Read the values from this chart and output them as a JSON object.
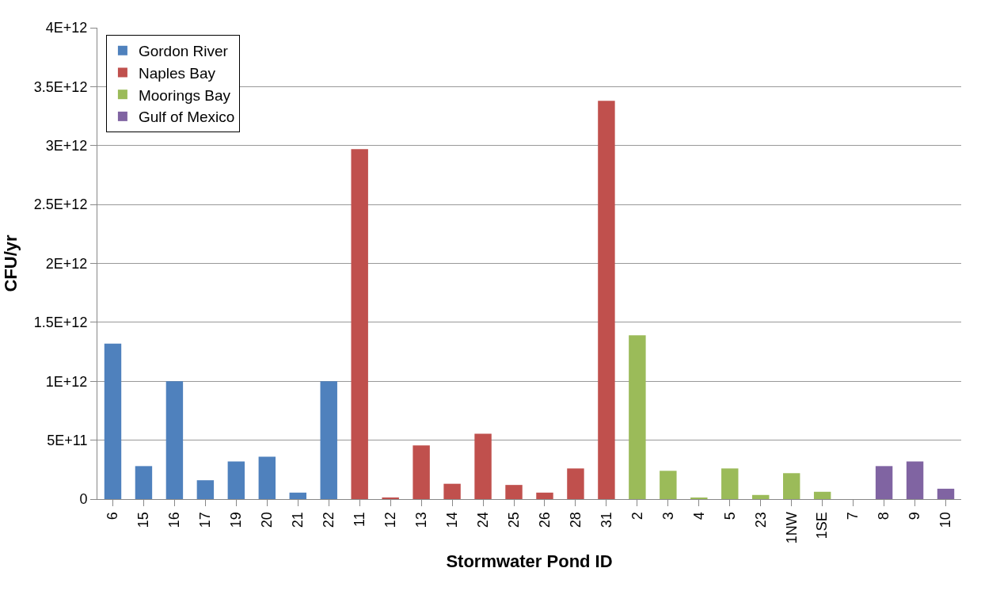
{
  "chart_data": {
    "type": "bar",
    "xlabel": "Stormwater Pond ID",
    "ylabel": "CFU/yr",
    "categories": [
      "6",
      "15",
      "16",
      "17",
      "19",
      "20",
      "21",
      "22",
      "11",
      "12",
      "13",
      "14",
      "24",
      "25",
      "26",
      "28",
      "31",
      "2",
      "3",
      "4",
      "5",
      "23",
      "1NW",
      "1SE",
      "7",
      "8",
      "9",
      "10"
    ],
    "series": [
      {
        "name": "Gordon River",
        "color": "#4f81bd",
        "values": [
          1320000000000.0,
          280000000000.0,
          1000000000000.0,
          160000000000.0,
          320000000000.0,
          360000000000.0,
          55000000000.0,
          1000000000000.0,
          null,
          null,
          null,
          null,
          null,
          null,
          null,
          null,
          null,
          null,
          null,
          null,
          null,
          null,
          null,
          null,
          null,
          null,
          null,
          null
        ]
      },
      {
        "name": "Naples Bay",
        "color": "#c0504d",
        "values": [
          null,
          null,
          null,
          null,
          null,
          null,
          null,
          null,
          2970000000000.0,
          14000000000.0,
          455000000000.0,
          130000000000.0,
          554000000000.0,
          120000000000.0,
          55000000000.0,
          260000000000.0,
          3380000000000.0,
          null,
          null,
          null,
          null,
          null,
          null,
          null,
          null,
          null,
          null,
          null
        ]
      },
      {
        "name": "Moorings Bay",
        "color": "#9bbb59",
        "values": [
          null,
          null,
          null,
          null,
          null,
          null,
          null,
          null,
          null,
          null,
          null,
          null,
          null,
          null,
          null,
          null,
          null,
          1390000000000.0,
          240000000000.0,
          9000000000.0,
          260000000000.0,
          35000000000.0,
          220000000000.0,
          62000000000.0,
          0,
          null,
          null,
          null
        ]
      },
      {
        "name": "Gulf of Mexico",
        "color": "#8064a2",
        "values": [
          null,
          null,
          null,
          null,
          null,
          null,
          null,
          null,
          null,
          null,
          null,
          null,
          null,
          null,
          null,
          null,
          null,
          null,
          null,
          null,
          null,
          null,
          null,
          null,
          null,
          280000000000.0,
          320000000000.0,
          88000000000.0
        ]
      }
    ],
    "ylim": [
      0,
      4000000000000.0
    ],
    "yticks": [
      0,
      {
        "value": 500000000000.0,
        "label": "5E+11"
      },
      {
        "value": 1000000000000.0,
        "label": "1E+12"
      },
      {
        "value": 1500000000000.0,
        "label": "1.5E+12"
      },
      {
        "value": 2000000000000.0,
        "label": "2E+12"
      },
      {
        "value": 2500000000000.0,
        "label": "2.5E+12"
      },
      {
        "value": 3000000000000.0,
        "label": "3E+12"
      },
      {
        "value": 3500000000000.0,
        "label": "3.5E+12"
      },
      {
        "value": 4000000000000.0,
        "label": "4E+12"
      }
    ],
    "grid": "y",
    "legend": "top left"
  }
}
